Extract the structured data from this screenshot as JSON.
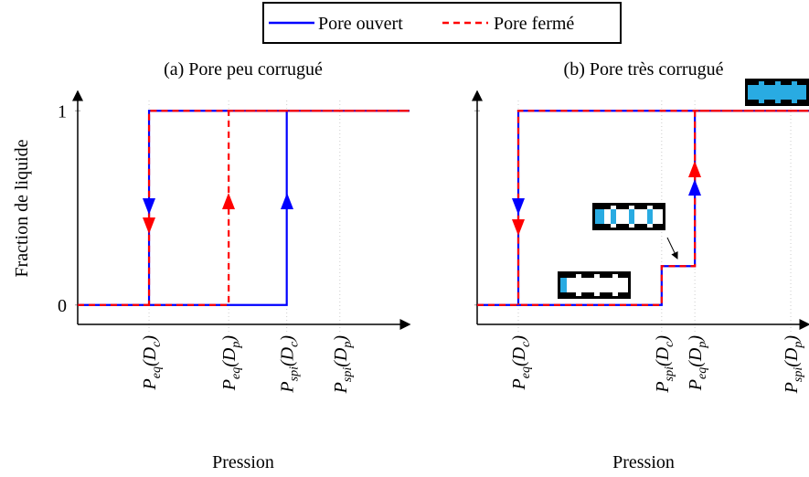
{
  "chart_data": [
    {
      "type": "line",
      "title": "(a) Pore peu corrugué",
      "xlabel": "Pression",
      "ylabel": "Fraction de liquide",
      "xlim": [
        0,
        10
      ],
      "ylim": [
        -0.1,
        1.1
      ],
      "xticks": [
        {
          "value": 2.15,
          "label": "Peq(Dc)"
        },
        {
          "value": 4.55,
          "label": "Peq(Dp)"
        },
        {
          "value": 6.3,
          "label": "Pspi(Dc)"
        },
        {
          "value": 7.9,
          "label": "Pspi(Dp)"
        }
      ],
      "yticks": [
        0,
        1
      ],
      "grid": true,
      "series": [
        {
          "name": "Pore ouvert",
          "color": "#0000ff",
          "x": [
            0,
            6.3,
            6.3,
            10,
            2.15,
            2.15
          ],
          "values": [
            0,
            0,
            1,
            1,
            1,
            0
          ]
        },
        {
          "name": "Pore fermé",
          "color": "#ff0000",
          "x": [
            0,
            4.55,
            4.55,
            10,
            2.15,
            2.15
          ],
          "values": [
            0,
            0,
            1,
            1,
            1,
            0
          ]
        }
      ]
    },
    {
      "type": "line",
      "title": "(b) Pore très corrugué",
      "xlabel": "Pression",
      "xlim": [
        0,
        10
      ],
      "ylim": [
        -0.1,
        1.1
      ],
      "xticks": [
        {
          "value": 1.24,
          "label": "Peq(Dc)"
        },
        {
          "value": 5.56,
          "label": "Pspi(Dc)"
        },
        {
          "value": 6.56,
          "label": "Peq(Dp)"
        },
        {
          "value": 9.45,
          "label": "Pspi(Dp)"
        }
      ],
      "yticks": [
        0,
        1
      ],
      "grid": true,
      "series": [
        {
          "name": "Pore ouvert",
          "color": "#0000ff",
          "x": [
            0,
            5.56,
            5.56,
            6.56,
            6.56,
            10,
            1.24,
            1.24
          ],
          "values": [
            0,
            0,
            0.2,
            0.2,
            1,
            1,
            1,
            0
          ]
        },
        {
          "name": "Pore fermé",
          "color": "#ff0000",
          "x": [
            0,
            5.56,
            5.56,
            6.56,
            6.56,
            10,
            1.24,
            1.24
          ],
          "values": [
            0,
            0,
            0.2,
            0.2,
            1,
            1,
            1,
            0
          ]
        }
      ]
    }
  ]
}
